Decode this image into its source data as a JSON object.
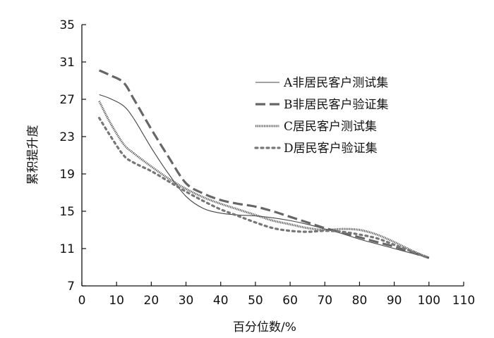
{
  "chart_data": {
    "type": "line",
    "title": "",
    "xlabel": "百分位数/%",
    "ylabel": "累积提升度",
    "xlim": [
      0,
      110
    ],
    "ylim": [
      7,
      35
    ],
    "x_ticks": [
      0,
      10,
      20,
      30,
      40,
      50,
      60,
      70,
      80,
      90,
      100,
      110
    ],
    "y_ticks": [
      7,
      11,
      15,
      19,
      23,
      27,
      31,
      35
    ],
    "grid": false,
    "legend_position": "top-right",
    "series": [
      {
        "name": "A非居民客户测试集",
        "style": "solid-thin",
        "color": "#444444",
        "points": [
          [
            5,
            27.5
          ],
          [
            8,
            27.1
          ],
          [
            12,
            26.3
          ],
          [
            15,
            24.9
          ],
          [
            20,
            21.8
          ],
          [
            25,
            19.0
          ],
          [
            30,
            16.6
          ],
          [
            35,
            15.3
          ],
          [
            40,
            14.8
          ],
          [
            45,
            14.6
          ],
          [
            50,
            14.5
          ],
          [
            55,
            14.3
          ],
          [
            60,
            14.0
          ],
          [
            65,
            13.6
          ],
          [
            70,
            13.1
          ],
          [
            75,
            12.6
          ],
          [
            80,
            12.0
          ],
          [
            85,
            11.5
          ],
          [
            90,
            11.0
          ],
          [
            95,
            10.5
          ],
          [
            100,
            10.0
          ]
        ]
      },
      {
        "name": "B非居民客户验证集",
        "style": "long-dash-thick",
        "color": "#666666",
        "points": [
          [
            5,
            30.1
          ],
          [
            8,
            29.6
          ],
          [
            12,
            28.8
          ],
          [
            15,
            27.0
          ],
          [
            20,
            23.8
          ],
          [
            25,
            20.8
          ],
          [
            30,
            18.0
          ],
          [
            35,
            16.9
          ],
          [
            40,
            16.2
          ],
          [
            45,
            15.8
          ],
          [
            50,
            15.5
          ],
          [
            55,
            15.0
          ],
          [
            60,
            14.4
          ],
          [
            65,
            13.8
          ],
          [
            70,
            13.2
          ],
          [
            75,
            12.7
          ],
          [
            80,
            12.2
          ],
          [
            85,
            11.7
          ],
          [
            90,
            11.2
          ],
          [
            95,
            10.6
          ],
          [
            100,
            10.0
          ]
        ]
      },
      {
        "name": "C居民客户测试集",
        "style": "textured",
        "color": "#555555",
        "points": [
          [
            5,
            26.8
          ],
          [
            8,
            24.6
          ],
          [
            12,
            22.2
          ],
          [
            15,
            21.2
          ],
          [
            20,
            19.8
          ],
          [
            25,
            18.5
          ],
          [
            30,
            17.4
          ],
          [
            35,
            16.5
          ],
          [
            40,
            15.8
          ],
          [
            45,
            15.2
          ],
          [
            50,
            14.6
          ],
          [
            55,
            14.0
          ],
          [
            60,
            13.6
          ],
          [
            65,
            13.2
          ],
          [
            70,
            13.0
          ],
          [
            75,
            13.1
          ],
          [
            80,
            13.0
          ],
          [
            85,
            12.5
          ],
          [
            90,
            11.7
          ],
          [
            95,
            10.8
          ],
          [
            100,
            10.0
          ]
        ]
      },
      {
        "name": "D居民客户验证集",
        "style": "dotted",
        "color": "#777777",
        "points": [
          [
            5,
            25.0
          ],
          [
            8,
            23.2
          ],
          [
            12,
            21.0
          ],
          [
            15,
            20.2
          ],
          [
            20,
            19.3
          ],
          [
            25,
            18.2
          ],
          [
            30,
            17.1
          ],
          [
            35,
            16.1
          ],
          [
            40,
            15.2
          ],
          [
            45,
            14.5
          ],
          [
            50,
            13.8
          ],
          [
            55,
            13.2
          ],
          [
            60,
            12.9
          ],
          [
            65,
            12.8
          ],
          [
            70,
            12.9
          ],
          [
            75,
            12.8
          ],
          [
            80,
            12.5
          ],
          [
            85,
            12.1
          ],
          [
            90,
            11.4
          ],
          [
            95,
            10.7
          ],
          [
            100,
            10.0
          ]
        ]
      }
    ]
  }
}
